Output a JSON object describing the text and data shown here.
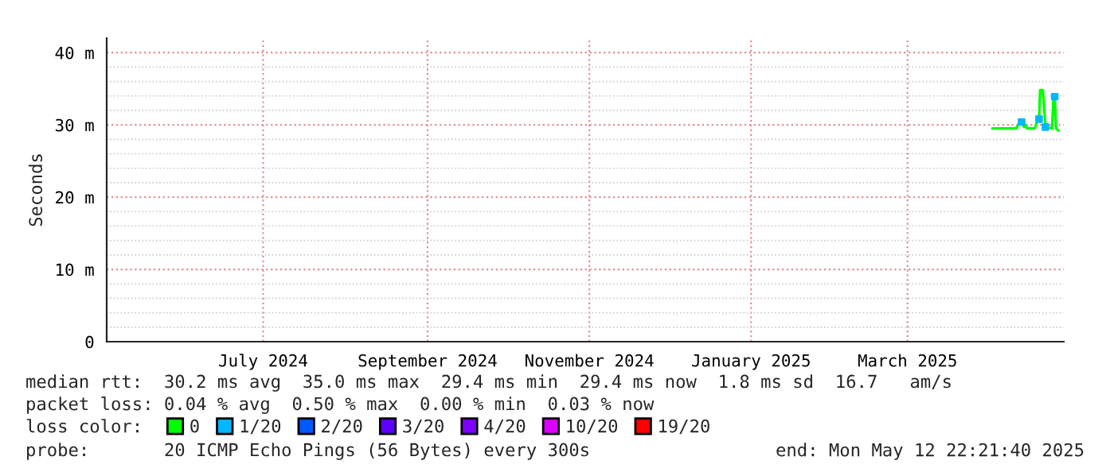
{
  "chart_data": {
    "type": "line",
    "ylabel": "Seconds",
    "x": [
      "2025-04-16",
      "2025-04-25",
      "2025-04-26",
      "2025-04-27",
      "2025-04-28",
      "2025-04-28T12:00",
      "2025-04-29",
      "2025-05-02",
      "2025-05-03",
      "2025-05-03T14:00",
      "2025-05-04",
      "2025-05-05",
      "2025-05-05T12:00",
      "2025-05-06",
      "2025-05-08T12:00",
      "2025-05-09",
      "2025-05-09T12:00",
      "2025-05-10",
      "2025-05-11"
    ],
    "series": [
      {
        "name": "0",
        "color": "#00ff00",
        "values": [
          29.5,
          29.5,
          30.2,
          30.4,
          29.7,
          30.0,
          29.5,
          29.5,
          30.7,
          30.8,
          34.8,
          34.8,
          32.5,
          29.7,
          29.5,
          33.5,
          33.9,
          29.5,
          29.2
        ]
      },
      {
        "name": "1/20",
        "color": "#00b8ff",
        "type": "scatter",
        "marker": "square",
        "values": [
          null,
          null,
          null,
          30.4,
          null,
          null,
          null,
          null,
          null,
          30.8,
          null,
          null,
          null,
          29.7,
          null,
          null,
          33.9,
          null,
          null
        ]
      },
      {
        "name": "2/20",
        "color": "#0059ff",
        "values": [
          null,
          null,
          null,
          null,
          null,
          null,
          null,
          null,
          null,
          null,
          null,
          null,
          null,
          null,
          null,
          null,
          null,
          null,
          null
        ]
      },
      {
        "name": "3/20",
        "color": "#5e00ff",
        "values": [
          null,
          null,
          null,
          null,
          null,
          null,
          null,
          null,
          null,
          null,
          null,
          null,
          null,
          null,
          null,
          null,
          null,
          null,
          null
        ]
      },
      {
        "name": "4/20",
        "color": "#7e00ff",
        "values": [
          null,
          null,
          null,
          null,
          null,
          null,
          null,
          null,
          null,
          null,
          null,
          null,
          null,
          null,
          null,
          null,
          null,
          null,
          null
        ]
      },
      {
        "name": "10/20",
        "color": "#dd00ff",
        "values": [
          null,
          null,
          null,
          null,
          null,
          null,
          null,
          null,
          null,
          null,
          null,
          null,
          null,
          null,
          null,
          null,
          null,
          null,
          null
        ]
      },
      {
        "name": "19/20",
        "color": "#ff0000",
        "values": [
          null,
          null,
          null,
          null,
          null,
          null,
          null,
          null,
          null,
          null,
          null,
          null,
          null,
          null,
          null,
          null,
          null,
          null,
          null
        ]
      }
    ],
    "xlim": [
      "2024-05-17",
      "2025-05-12T22:21"
    ],
    "xticks": [
      {
        "value": "2024-07-15",
        "label": "July 2024"
      },
      {
        "value": "2024-09-15",
        "label": "September 2024"
      },
      {
        "value": "2024-11-15",
        "label": "November 2024"
      },
      {
        "value": "2025-01-15",
        "label": "January 2025"
      },
      {
        "value": "2025-03-15",
        "label": "March 2025"
      }
    ],
    "ylim": [
      0,
      42
    ],
    "yticks": [
      0,
      {
        "value": 10,
        "label": "10 m"
      },
      {
        "value": 20,
        "label": "20 m"
      },
      {
        "value": 30,
        "label": "30 m"
      },
      {
        "value": 40,
        "label": "40 m"
      }
    ],
    "grid": true,
    "legend": "bottom",
    "annotations": [
      "median rtt:  30.2 ms avg  35.0 ms max  29.4 ms min  29.4 ms now  1.8 ms sd  16.7   am/s",
      "packet loss: 0.04 % avg  0.50 % max  0.00 % min  0.03 % now",
      "loss color:",
      "probe:       20 ICMP Echo Pings (56 Bytes) every 300s",
      "end: Mon May 12 22:21:40 2025"
    ]
  }
}
